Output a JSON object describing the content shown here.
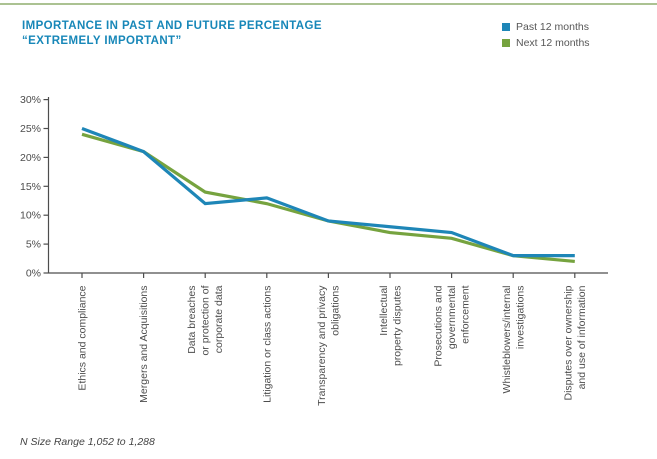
{
  "header": {
    "title_line1": "IMPORTANCE IN PAST AND FUTURE PERCENTAGE",
    "title_line2": "“EXTREMELY IMPORTANT”"
  },
  "legend": {
    "items": [
      {
        "label": "Past 12 months",
        "color": "#1e86b7"
      },
      {
        "label": "Next 12 months",
        "color": "#76a33f"
      }
    ]
  },
  "footer": {
    "note": "N Size Range 1,052 to 1,288"
  },
  "colors": {
    "past_line": "#1e86b7",
    "next_line": "#76a33f",
    "title_text": "#1787b8",
    "axis": "#4d4d4d",
    "label_text": "#4d4d4d",
    "top_border": "#abc292"
  },
  "chart_data": {
    "type": "line",
    "title": "IMPORTANCE IN PAST AND FUTURE PERCENTAGE “EXTREMELY IMPORTANT”",
    "categories": [
      "Ethics and compliance",
      "Mergers and Acquisitions",
      "Data breaches or protection of corporate data",
      "Litigation or class actions",
      "Transparency and privacy obligations",
      "Intellectual property disputes",
      "Prosecutions and governmental enforcement",
      "Whistleblowers/internal investigations",
      "Disputes over ownership and use of information"
    ],
    "categories_wrapped": [
      [
        "Ethics and compliance"
      ],
      [
        "Mergers and Acquisitions"
      ],
      [
        "Data breaches",
        "or protection of",
        "corporate data"
      ],
      [
        "Litigation or class actions"
      ],
      [
        "Transparency and privacy",
        "obligations"
      ],
      [
        "Intellectual",
        "property disputes"
      ],
      [
        "Prosecutions and",
        "governmental",
        "enforcement"
      ],
      [
        "Whistleblowers/internal",
        "investigations"
      ],
      [
        "Disputes over ownership",
        "and use of information"
      ]
    ],
    "series": [
      {
        "name": "Past 12 months",
        "color": "#1e86b7",
        "values": [
          25,
          21,
          12,
          13,
          9,
          8,
          7,
          3,
          3
        ]
      },
      {
        "name": "Next 12 months",
        "color": "#76a33f",
        "values": [
          24,
          21,
          14,
          12,
          9,
          7,
          6,
          3,
          2
        ]
      }
    ],
    "yticks": [
      "0%",
      "5%",
      "10%",
      "15%",
      "20%",
      "25%",
      "30%"
    ],
    "ytick_step": 5,
    "ylim": [
      0,
      30
    ],
    "grid": false,
    "legend_position": "top-right",
    "note": "N Size Range 1,052 to 1,288"
  }
}
